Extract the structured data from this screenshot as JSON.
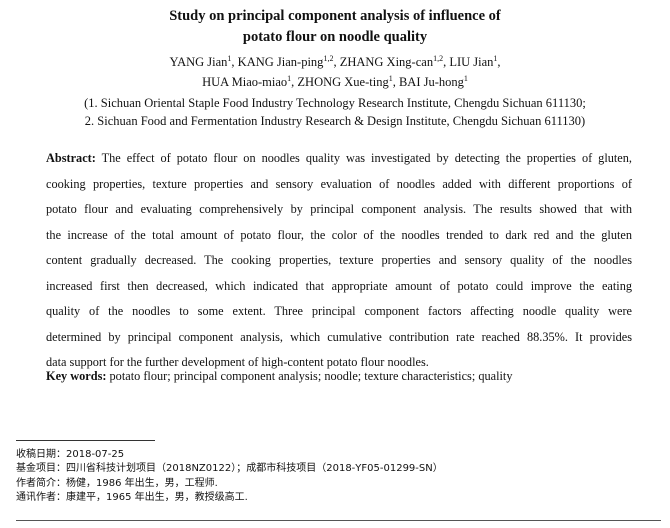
{
  "title": [
    "Study on principal component analysis of influence of",
    "potato flour on noodle quality"
  ],
  "authors_line1": [
    {
      "name": "YANG Jian",
      "sup": "1",
      "sep": ", "
    },
    {
      "name": "KANG Jian-ping",
      "sup": "1,2",
      "sep": ", "
    },
    {
      "name": "ZHANG Xing-can",
      "sup": "1,2",
      "sep": ", "
    },
    {
      "name": "LIU Jian",
      "sup": "1",
      "sep": ","
    }
  ],
  "authors_line2": [
    {
      "name": "HUA Miao-miao",
      "sup": "1",
      "sep": ", "
    },
    {
      "name": "ZHONG Xue-ting",
      "sup": "1",
      "sep": ", "
    },
    {
      "name": "BAI Ju-hong",
      "sup": "1",
      "sep": ""
    }
  ],
  "affiliations": [
    "(1. Sichuan Oriental Staple Food Industry Technology Research Institute, Chengdu Sichuan 611130;",
    "2. Sichuan Food and Fermentation Industry Research & Design Institute, Chengdu Sichuan 611130)"
  ],
  "abstract_label": "Abstract:",
  "abstract_lines": [
    " The effect of potato flour on noodles quality was investigated by detecting the properties of gluten,",
    "cooking properties, texture properties and sensory evaluation of noodles added with different proportions of",
    "potato flour and evaluating comprehensively by principal component analysis. The results showed that with",
    "the increase of the total amount of potato flour, the color of the noodles trended to dark red and the gluten",
    "content gradually decreased. The cooking properties, texture properties and sensory quality of the noodles",
    "increased first then decreased, which indicated that appropriate amount of potato could improve the eating",
    "quality of the noodles to some extent. Three principal component factors affecting noodle quality were",
    "determined by principal component analysis, which cumulative contribution rate reached 88.35%. It provides",
    "data support for the further development of high-content potato flour noodles."
  ],
  "keywords_label": "Key words:",
  "keywords": " potato flour; principal component analysis; noodle; texture characteristics; quality",
  "footnotes": [
    "收稿日期：2018-07-25",
    "基金项目：四川省科技计划项目（2018NZ0122）；成都市科技项目（2018-YF05-01299-SN）",
    "作者简介：杨健，1986 年出生，男，工程师.",
    "通讯作者：康建平，1965 年出生，男，教授级高工."
  ]
}
